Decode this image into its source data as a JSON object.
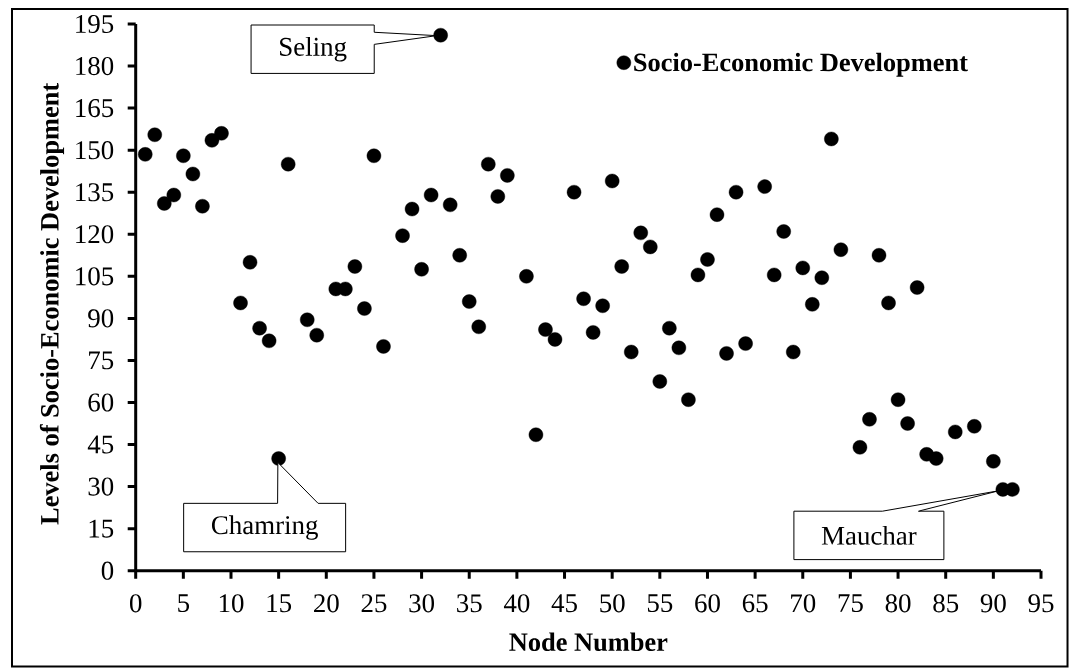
{
  "chart_data": {
    "type": "scatter",
    "xlabel": "Node Number",
    "ylabel": "Levels of Socio-Economic Development",
    "x": [
      1,
      2,
      3,
      4,
      5,
      6,
      7,
      8,
      9,
      11,
      12,
      13,
      14,
      15,
      16,
      18,
      19,
      21,
      22,
      23,
      24,
      25,
      26,
      28,
      29,
      30,
      31,
      32,
      33,
      34,
      35,
      36,
      37,
      38,
      39,
      41,
      42,
      43,
      44,
      46,
      47,
      48,
      49,
      50,
      51,
      52,
      53,
      54,
      55,
      56,
      57,
      58,
      59,
      60,
      61,
      62,
      63,
      64,
      66,
      67,
      68,
      69,
      70,
      71,
      72,
      73,
      74,
      76,
      77,
      78,
      79,
      80,
      81,
      82,
      83,
      84,
      86,
      88,
      90,
      91,
      92
    ],
    "series": [
      {
        "name": "Socio-Economic Development",
        "color": "#000000",
        "values": [
          148.5,
          155.5,
          131,
          134,
          148,
          141.5,
          130,
          153.5,
          156,
          95.5,
          110,
          86.5,
          82,
          40,
          145,
          89.5,
          84,
          100.5,
          100.5,
          108.5,
          93.5,
          148,
          80,
          119.5,
          129,
          107.5,
          134,
          191,
          130.5,
          112.5,
          96,
          87,
          145,
          133.5,
          141,
          105,
          48.5,
          86,
          82.5,
          135,
          97,
          85,
          94.5,
          139,
          108.5,
          78,
          120.5,
          115.5,
          67.5,
          86.5,
          79.5,
          61,
          105.5,
          111,
          127,
          77.5,
          135,
          81,
          137,
          105.5,
          121,
          78,
          108,
          95,
          104.5,
          154,
          114.5,
          44,
          54,
          112.5,
          95.5,
          61,
          52.5,
          101,
          41.5,
          40,
          49.5,
          51.5,
          39,
          29,
          29
        ]
      }
    ],
    "xlim": [
      0,
      95
    ],
    "ylim": [
      0,
      195
    ],
    "xticks": [
      0,
      5,
      10,
      15,
      20,
      25,
      30,
      35,
      40,
      45,
      50,
      55,
      60,
      65,
      70,
      75,
      80,
      85,
      90,
      95
    ],
    "yticks": [
      0,
      15,
      30,
      45,
      60,
      75,
      90,
      105,
      120,
      135,
      150,
      165,
      180,
      195
    ],
    "legend": "top right",
    "marker": "circle",
    "annotations": [
      {
        "text": "Seling",
        "x": 32,
        "y": 191
      },
      {
        "text": "Chamring",
        "x": 15,
        "y": 40
      },
      {
        "text": "Mauchar",
        "x": 91,
        "y": 29
      }
    ]
  }
}
